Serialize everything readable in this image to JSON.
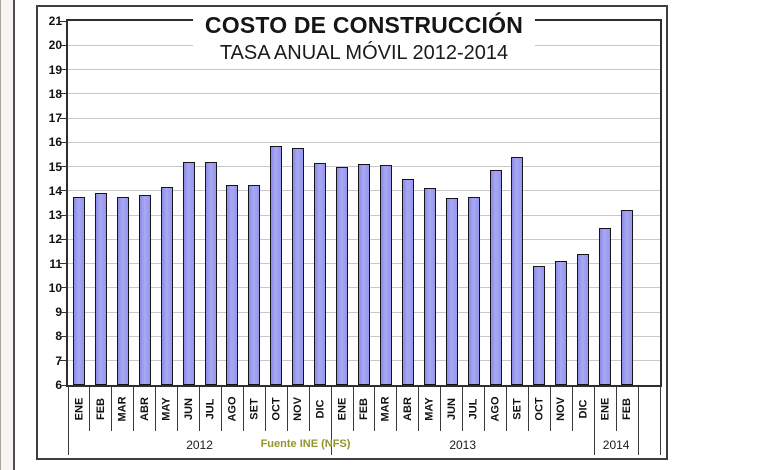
{
  "chart": {
    "title": "COSTO DE CONSTRUCCIÓN",
    "subtitle": "TASA ANUAL MÓVIL 2012-2014",
    "source_note": "Fuente INE (NFS)"
  },
  "chart_data": {
    "type": "bar",
    "title": "COSTO DE CONSTRUCCIÓN",
    "subtitle": "TASA ANUAL MÓVIL 2012-2014",
    "categories": [
      "ENE",
      "FEB",
      "MAR",
      "ABR",
      "MAY",
      "JUN",
      "JUL",
      "AGO",
      "SET",
      "OCT",
      "NOV",
      "DIC",
      "ENE",
      "FEB",
      "MAR",
      "ABR",
      "MAY",
      "JUN",
      "JUL",
      "AGO",
      "SET",
      "OCT",
      "NOV",
      "DIC",
      "ENE",
      "FEB"
    ],
    "values": [
      13.75,
      13.9,
      13.75,
      13.85,
      14.15,
      15.2,
      15.2,
      14.25,
      14.25,
      15.85,
      15.75,
      15.15,
      15.0,
      15.1,
      15.05,
      14.5,
      14.1,
      13.7,
      13.75,
      14.85,
      15.4,
      10.9,
      11.1,
      11.4,
      12.45,
      13.2
    ],
    "year_groups": [
      {
        "label": "2012",
        "span": 12
      },
      {
        "label": "2013",
        "span": 12
      },
      {
        "label": "2014",
        "span": 2
      },
      {
        "label": "",
        "span": 1
      }
    ],
    "ylim": [
      6,
      21
    ],
    "yticks": [
      6,
      7,
      8,
      9,
      10,
      11,
      12,
      13,
      14,
      15,
      16,
      17,
      18,
      19,
      20,
      21
    ],
    "grid": true,
    "legend": "none",
    "colors": {
      "bar_fill": "#9a9af0",
      "bar_border": "#151515",
      "gridline": "#c8c8c8",
      "axis": "#2e2e2e",
      "source_text": "#94942c"
    }
  }
}
